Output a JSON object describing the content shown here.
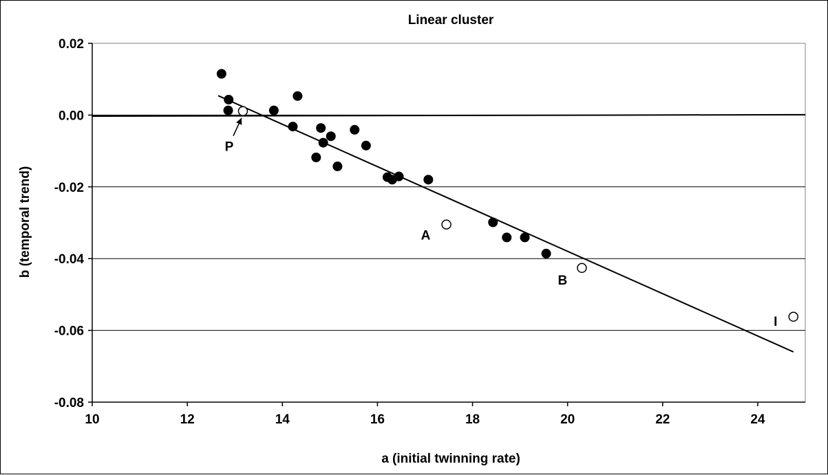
{
  "chart_data": {
    "type": "scatter",
    "title": "Linear cluster",
    "xlabel": "a (initial twinning rate)",
    "ylabel": "b (temporal trend)",
    "xlim": [
      10,
      25
    ],
    "ylim": [
      -0.08,
      0.02
    ],
    "x_ticks": [
      "10",
      "12",
      "14",
      "16",
      "18",
      "20",
      "22",
      "24"
    ],
    "x_tick_values": [
      10,
      12,
      14,
      16,
      18,
      20,
      22,
      24
    ],
    "y_ticks": [
      "0.02",
      "0.00",
      "-0.02",
      "-0.04",
      "-0.06",
      "-0.08"
    ],
    "y_tick_values": [
      0.02,
      0.0,
      -0.02,
      -0.04,
      -0.06,
      -0.08
    ],
    "grid": "horizontal",
    "series": [
      {
        "marker": "filled-circle",
        "color": "#000000",
        "points": [
          [
            12.72,
            0.0115
          ],
          [
            12.87,
            0.0043
          ],
          [
            12.86,
            0.0013
          ],
          [
            13.82,
            0.0013
          ],
          [
            14.32,
            0.0053
          ],
          [
            14.22,
            -0.0032
          ],
          [
            14.81,
            -0.0036
          ],
          [
            14.86,
            -0.0077
          ],
          [
            15.02,
            -0.0059
          ],
          [
            14.71,
            -0.0118
          ],
          [
            15.16,
            -0.0143
          ],
          [
            15.52,
            -0.0041
          ],
          [
            15.76,
            -0.0085
          ],
          [
            16.21,
            -0.0173
          ],
          [
            16.31,
            -0.018
          ],
          [
            16.45,
            -0.0171
          ],
          [
            17.07,
            -0.018
          ],
          [
            18.43,
            -0.0299
          ],
          [
            18.72,
            -0.0341
          ],
          [
            19.1,
            -0.0341
          ],
          [
            19.55,
            -0.0386
          ]
        ]
      },
      {
        "marker": "open-circle",
        "color": "#000000",
        "points": [
          {
            "x": 13.17,
            "y": 0.0011,
            "label": "P"
          },
          {
            "x": 17.45,
            "y": -0.0305,
            "label": "A"
          },
          {
            "x": 20.3,
            "y": -0.0426,
            "label": "B"
          },
          {
            "x": 24.75,
            "y": -0.0562,
            "label": "I"
          }
        ]
      }
    ],
    "trend_line": {
      "x": [
        12.65,
        24.75
      ],
      "y": [
        0.0054,
        -0.066
      ]
    },
    "zero_line": {
      "x": [
        10,
        25
      ],
      "y": [
        -0.0003,
        0.0001
      ]
    }
  }
}
